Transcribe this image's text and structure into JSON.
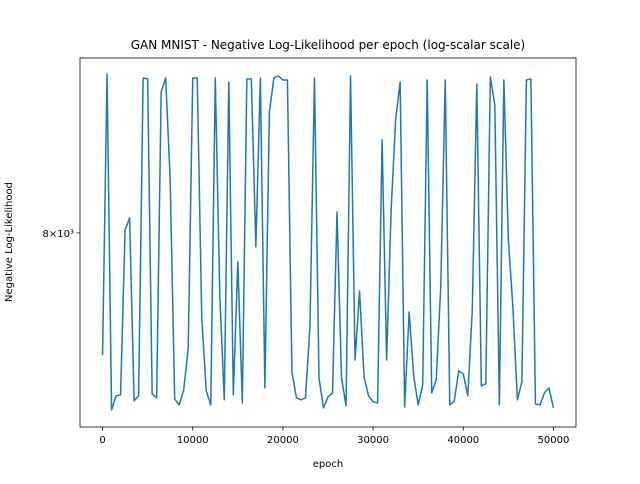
{
  "chart_data": {
    "type": "line",
    "title": "GAN MNIST - Negative Log-Likelihood per epoch (log-scalar scale)",
    "x_label": "epoch",
    "y_label": "Negative Log-Likelihood",
    "yscale": "log",
    "x": [
      0,
      500,
      1000,
      1500,
      2000,
      2500,
      3000,
      3500,
      4000,
      4500,
      5000,
      5500,
      6000,
      6500,
      7000,
      7500,
      8000,
      8500,
      9000,
      9500,
      10000,
      10500,
      11000,
      11500,
      12000,
      12500,
      13000,
      13500,
      14000,
      14500,
      15000,
      15500,
      16000,
      16500,
      17000,
      17500,
      18000,
      18500,
      19000,
      19500,
      20000,
      20500,
      21000,
      21500,
      22000,
      22500,
      23000,
      23500,
      24000,
      24500,
      25000,
      25500,
      26000,
      26500,
      27000,
      27500,
      28000,
      28500,
      29000,
      29500,
      30000,
      30500,
      31000,
      31500,
      32000,
      32500,
      33000,
      33500,
      34000,
      34500,
      35000,
      35500,
      36000,
      36500,
      37000,
      37500,
      38000,
      38500,
      39000,
      39500,
      40000,
      40500,
      41000,
      41500,
      42000,
      42500,
      43000,
      43500,
      44000,
      44500,
      45000,
      45500,
      46000,
      46500,
      47000,
      47500,
      48000,
      48500,
      49000,
      49500,
      50000
    ],
    "series": [
      {
        "color": "#1f77b4",
        "values": [
          7415,
          8832,
          7166,
          7229,
          7233,
          8015,
          8075,
          7206,
          7229,
          8810,
          8804,
          7238,
          7220,
          8733,
          8810,
          8268,
          7215,
          7188,
          7256,
          7447,
          8810,
          8810,
          7588,
          7251,
          7188,
          8810,
          7697,
          7211,
          8788,
          7233,
          7857,
          7197,
          8804,
          8804,
          7931,
          8810,
          7265,
          8626,
          8810,
          8821,
          8799,
          8799,
          7337,
          7220,
          7211,
          7220,
          7546,
          8810,
          7310,
          7175,
          7224,
          7242,
          8105,
          7310,
          7184,
          8821,
          7392,
          7716,
          7314,
          7229,
          7202,
          7197,
          8477,
          7392,
          8115,
          8583,
          8788,
          7179,
          7616,
          7319,
          7188,
          7278,
          8799,
          7242,
          7301,
          7736,
          8799,
          7188,
          7206,
          7342,
          7328,
          7229,
          7626,
          8777,
          7274,
          7283,
          8815,
          8663,
          7188,
          8799,
          7965,
          7640,
          7211,
          7292,
          8799,
          8804,
          7193,
          7188,
          7242,
          7265,
          7175
        ]
      }
    ],
    "xlim": [
      -2500,
      52500
    ],
    "xticks": [
      0,
      10000,
      20000,
      30000,
      40000,
      50000
    ],
    "ylim": [
      7090,
      8920
    ],
    "yticks": [
      {
        "value": 8000,
        "label": "8×10³"
      }
    ]
  }
}
